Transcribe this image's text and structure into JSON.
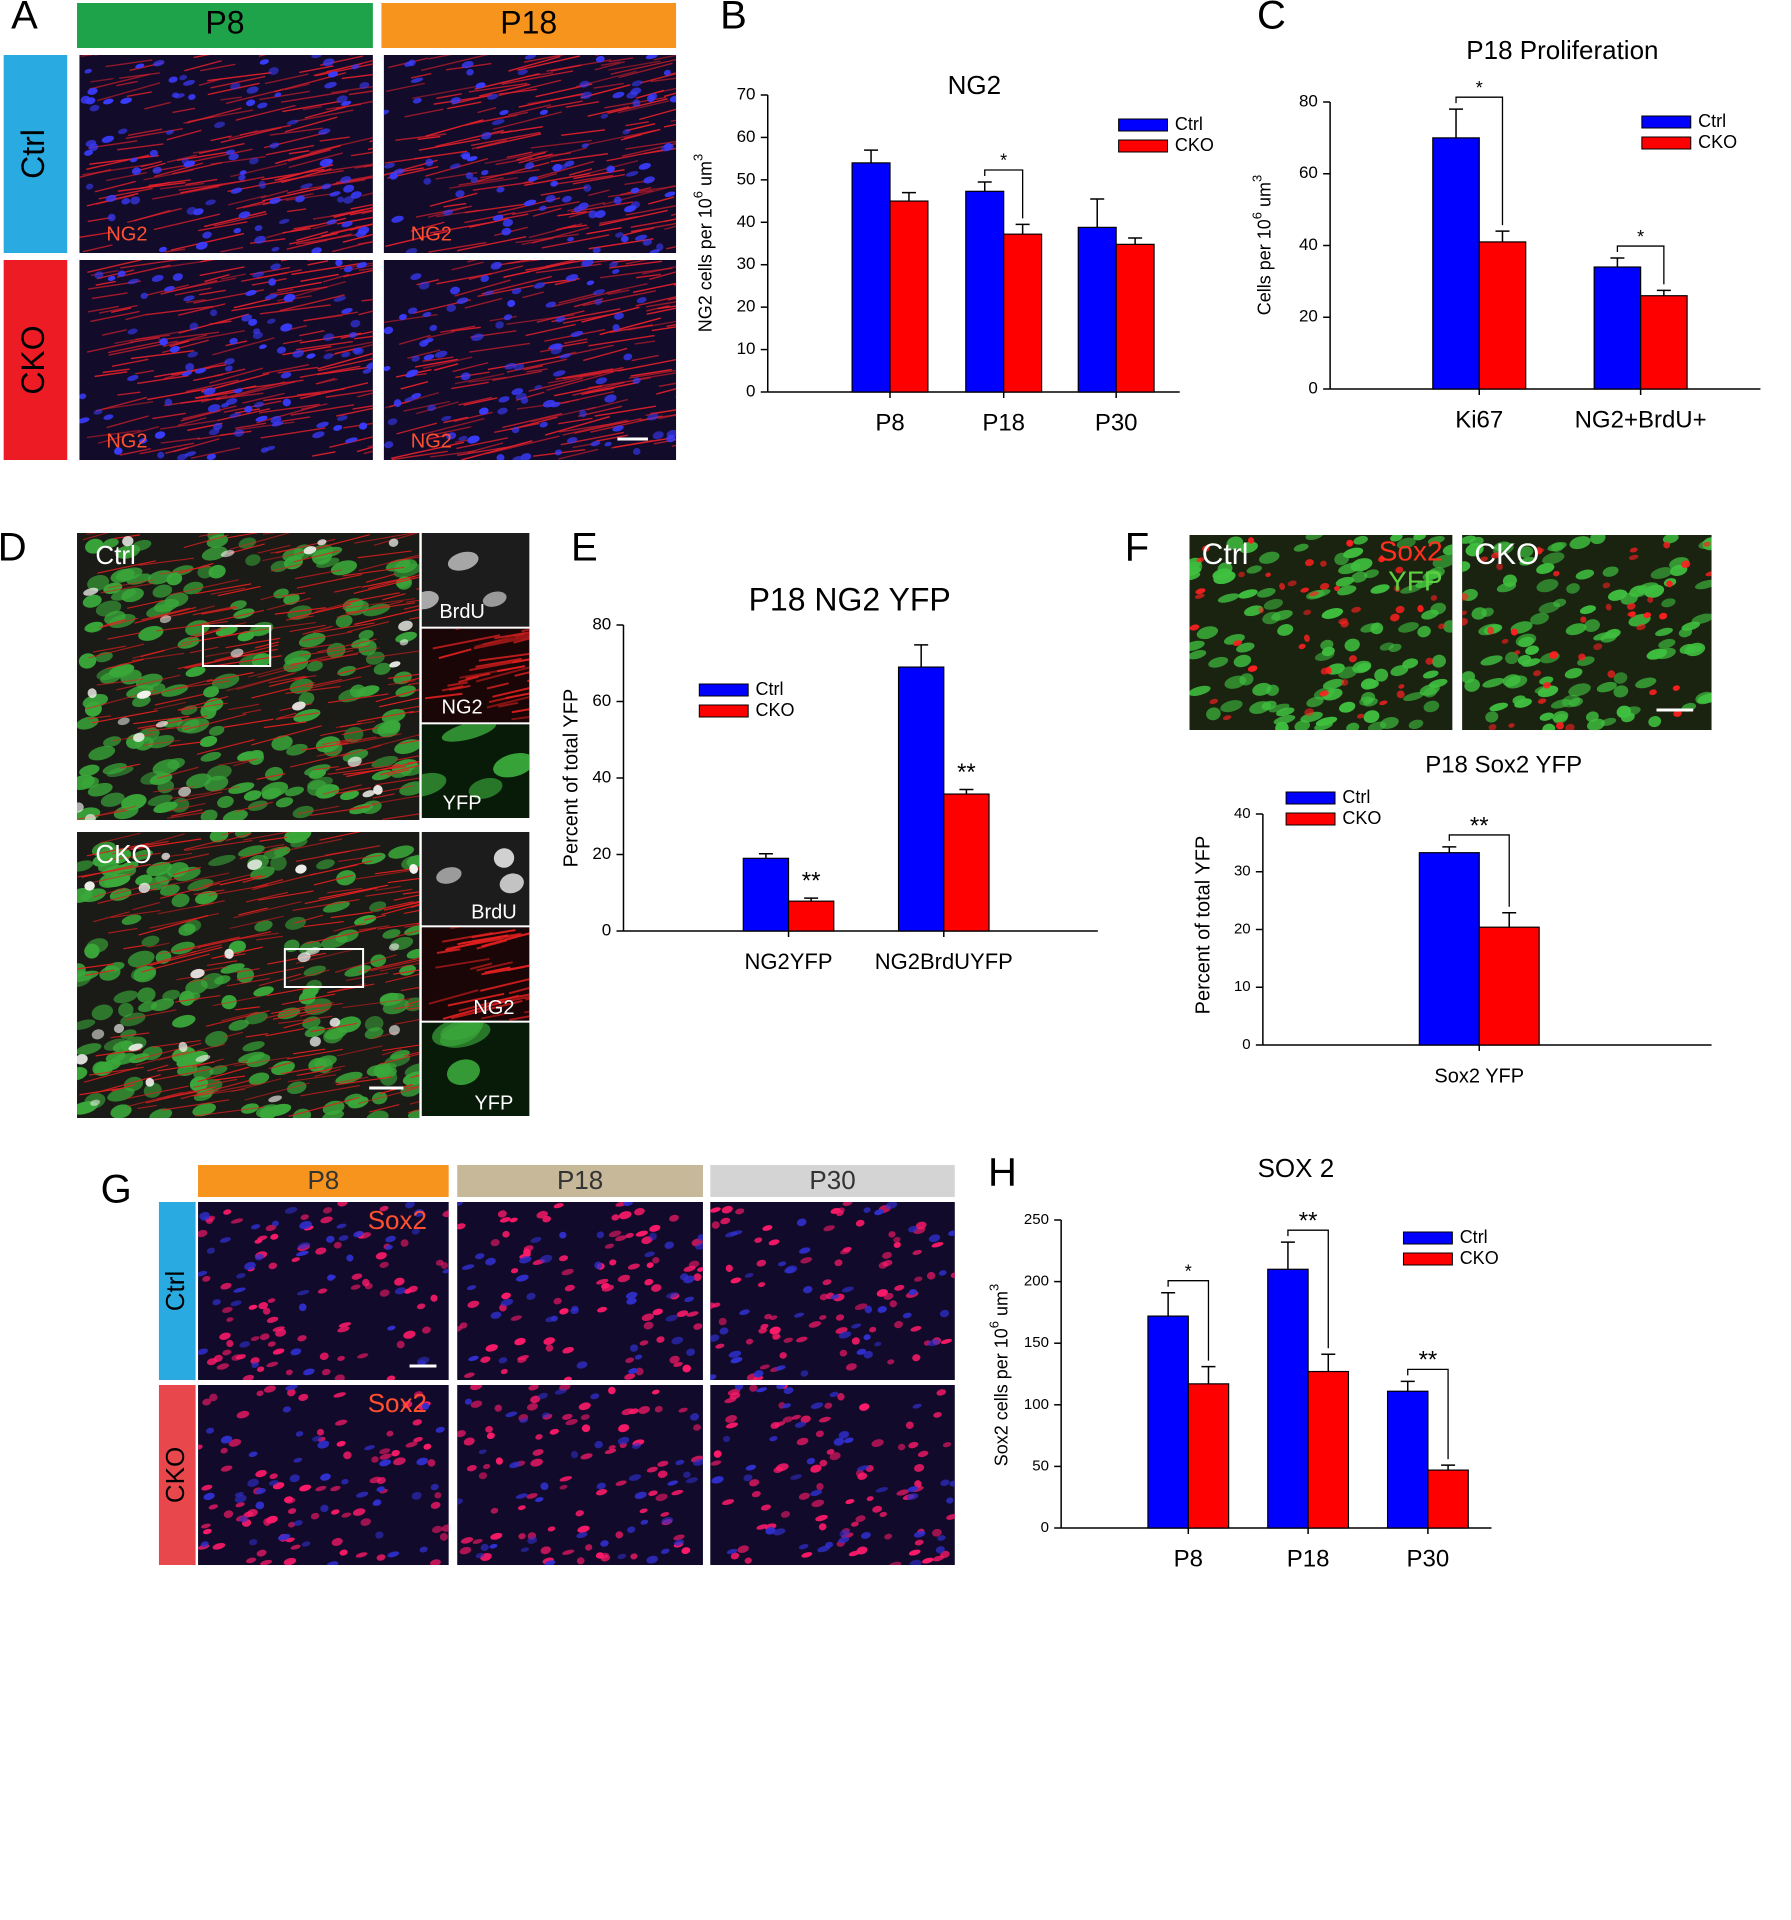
{
  "panel_letters": [
    "A",
    "B",
    "C",
    "D",
    "E",
    "F",
    "G",
    "H"
  ],
  "panel_a": {
    "columns": [
      "P8",
      "P18"
    ],
    "rows": [
      "Ctrl",
      "CKO"
    ],
    "stain": "NG2"
  },
  "panel_d": {
    "rows": [
      "Ctrl",
      "CKO"
    ],
    "insets": [
      "BrdU",
      "NG2",
      "YFP"
    ]
  },
  "panel_f": {
    "images": [
      "Ctrl",
      "CKO"
    ],
    "stains": [
      "Sox2",
      "YFP"
    ]
  },
  "panel_g": {
    "columns": [
      "P8",
      "P18",
      "P30"
    ],
    "rows": [
      "Ctrl",
      "CKO"
    ],
    "stain": "Sox2"
  },
  "chart_data": [
    {
      "type": "bar",
      "title": "NG2",
      "ylabel": [
        "NG2 cells per 10",
        "6",
        " um",
        "3"
      ],
      "categories": [
        "P8",
        "P18",
        "P30"
      ],
      "series": [
        {
          "name": "Ctrl",
          "color": "#0000ff",
          "values": [
            54,
            47.3,
            38.8
          ],
          "errors": [
            3,
            2.2,
            6.7
          ]
        },
        {
          "name": "CKO",
          "color": "#ff0000",
          "values": [
            45,
            37.2,
            34.8
          ],
          "errors": [
            2,
            2.3,
            1.5
          ]
        }
      ],
      "ylim": [
        0,
        70
      ],
      "yticks": [
        0,
        10,
        20,
        30,
        40,
        50,
        60,
        70
      ],
      "significance": [
        null,
        "*",
        null
      ],
      "significance_style": "bracket"
    },
    {
      "type": "bar",
      "title": "P18 Proliferation",
      "ylabel": [
        "Cells per 10",
        "6",
        " um",
        "3"
      ],
      "categories": [
        "Ki67",
        "NG2+BrdU+"
      ],
      "series": [
        {
          "name": "Ctrl",
          "color": "#0000ff",
          "values": [
            70,
            34
          ],
          "errors": [
            8,
            2.5
          ]
        },
        {
          "name": "CKO",
          "color": "#ff0000",
          "values": [
            41,
            26
          ],
          "errors": [
            3,
            1.5
          ]
        }
      ],
      "ylim": [
        0,
        80
      ],
      "yticks": [
        0,
        20,
        40,
        60,
        80
      ],
      "significance": [
        "*",
        "*"
      ],
      "significance_style": "bracket"
    },
    {
      "type": "bar",
      "title": "P18 NG2 YFP",
      "ylabel": "Percent of total YFP",
      "categories": [
        "NG2YFP",
        "NG2BrdUYFP"
      ],
      "series": [
        {
          "name": "Ctrl",
          "color": "#0000ff",
          "values": [
            19,
            69
          ],
          "errors": [
            1.2,
            5.8
          ]
        },
        {
          "name": "CKO",
          "color": "#ff0000",
          "values": [
            7.8,
            35.8
          ],
          "errors": [
            0.8,
            1.2
          ]
        }
      ],
      "ylim": [
        0,
        80
      ],
      "yticks": [
        0,
        20,
        40,
        60,
        80
      ],
      "significance": [
        "**",
        "**"
      ],
      "significance_style": "star"
    },
    {
      "type": "bar",
      "title": "P18 Sox2 YFP",
      "ylabel": "Percent of total YFP",
      "categories": [
        "Sox2 YFP"
      ],
      "series": [
        {
          "name": "Ctrl",
          "color": "#0000ff",
          "values": [
            33.3
          ],
          "errors": [
            1
          ]
        },
        {
          "name": "CKO",
          "color": "#ff0000",
          "values": [
            20.4
          ],
          "errors": [
            2.5
          ]
        }
      ],
      "ylim": [
        0,
        40
      ],
      "yticks": [
        0,
        10,
        20,
        30,
        40
      ],
      "significance": [
        "**"
      ],
      "significance_style": "bracket"
    },
    {
      "type": "bar",
      "title": "SOX 2",
      "ylabel": [
        "Sox2 cells per 10",
        "6",
        " um",
        "3"
      ],
      "categories": [
        "P8",
        "P18",
        "P30"
      ],
      "series": [
        {
          "name": "Ctrl",
          "color": "#0000ff",
          "values": [
            172,
            210,
            111
          ],
          "errors": [
            19,
            22,
            8
          ]
        },
        {
          "name": "CKO",
          "color": "#ff0000",
          "values": [
            117,
            127,
            47
          ],
          "errors": [
            14,
            14,
            4
          ]
        }
      ],
      "ylim": [
        0,
        250
      ],
      "yticks": [
        0,
        50,
        100,
        150,
        200,
        250
      ],
      "significance": [
        "*",
        "**",
        "**"
      ],
      "significance_style": "bracket"
    }
  ]
}
